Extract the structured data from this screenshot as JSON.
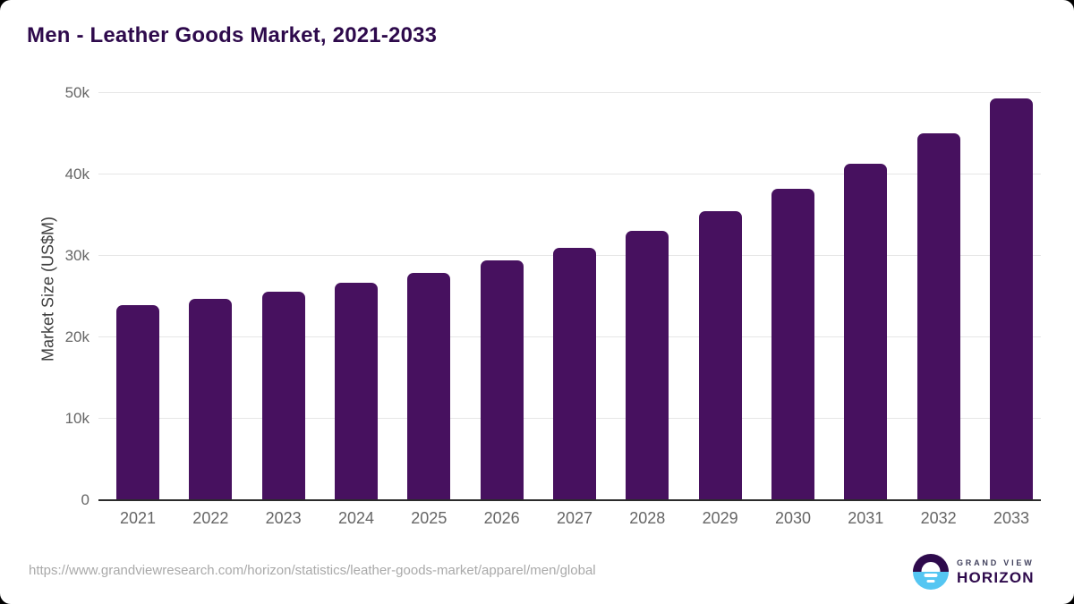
{
  "page": {
    "title": "Men - Leather Goods Market, 2021-2033",
    "footer_url": "https://www.grandviewresearch.com/horizon/statistics/leather-goods-market/apparel/men/global"
  },
  "logo": {
    "icon": "sun-horizon-icon",
    "line1": "GRAND VIEW",
    "line2": "HORIZON",
    "colors": {
      "purple": "#2e0a4c",
      "blue": "#55c6f2",
      "sun": "#ffffff"
    }
  },
  "chart_data": {
    "type": "bar",
    "title": "Men - Leather Goods Market, 2021-2033",
    "categories": [
      "2021",
      "2022",
      "2023",
      "2024",
      "2025",
      "2026",
      "2027",
      "2028",
      "2029",
      "2030",
      "2031",
      "2032",
      "2033"
    ],
    "values": [
      23900,
      24700,
      25600,
      26700,
      27900,
      29400,
      31000,
      33100,
      35500,
      38200,
      41300,
      45000,
      49300
    ],
    "xlabel": "",
    "ylabel": "Market Size (US$M)",
    "ylim": [
      0,
      51300
    ],
    "yticks": [
      0,
      10000,
      20000,
      30000,
      40000,
      50000
    ],
    "ytick_labels": [
      "0",
      "10k",
      "20k",
      "30k",
      "40k",
      "50k"
    ],
    "grid": true,
    "legend": false,
    "bar_color": "#47115f"
  },
  "colors": {
    "title": "#2e0a4c",
    "bar": "#47115f",
    "tick_label": "#666666",
    "axis_title": "#3d3d3d",
    "gridline": "#e6e6e6",
    "axis_line": "#2b2b2b",
    "footer": "#a9a9a9",
    "card_background": "#ffffff"
  }
}
